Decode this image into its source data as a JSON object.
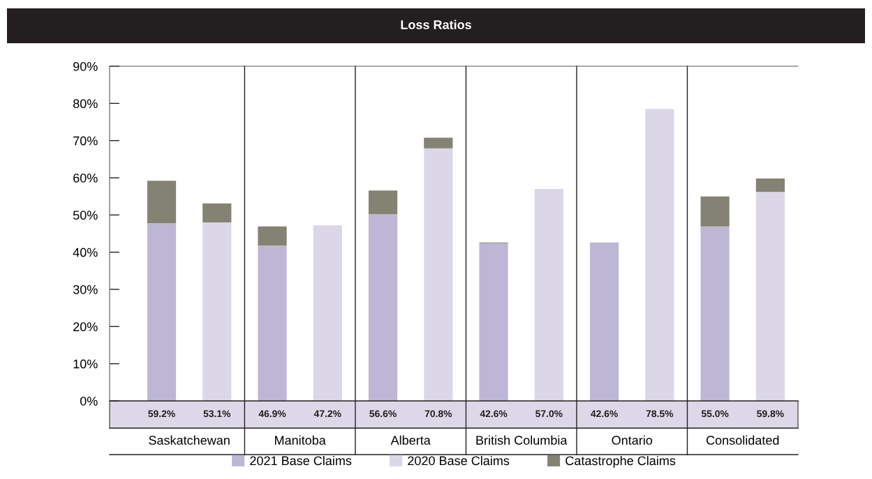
{
  "chart_data": {
    "type": "bar",
    "title": "Loss Ratios",
    "stacked": true,
    "categories": [
      "Saskatchewan",
      null,
      "Manitoba",
      null,
      "Alberta",
      null,
      "British Columbia",
      null,
      "Ontario",
      null,
      "Consolidated",
      null
    ],
    "series": [
      {
        "name": "2021 Base Claims",
        "color": "#bdb7d5",
        "values": [
          47.8,
          null,
          41.8,
          null,
          50.2,
          null,
          42.4,
          null,
          42.6,
          null,
          46.9,
          null
        ]
      },
      {
        "name": "2020 Base Claims",
        "color": "#dbd7e8",
        "values": [
          null,
          48.0,
          null,
          47.2,
          null,
          67.9,
          null,
          57.0,
          null,
          78.5,
          null,
          56.2
        ]
      },
      {
        "name": "Catastrophe Claims",
        "color": "#848273",
        "values": [
          11.4,
          5.1,
          5.1,
          0,
          6.4,
          2.9,
          0.2,
          0,
          0,
          0,
          8.1,
          3.6
        ]
      }
    ],
    "totals": [
      "59.2%",
      "53.1%",
      "46.9%",
      "47.2%",
      "56.6%",
      "70.8%",
      "42.6%",
      "57.0%",
      "42.6%",
      "78.5%",
      "55.0%",
      "59.8%"
    ],
    "ylim": [
      0,
      90
    ],
    "yticks": [
      {
        "value": 0,
        "label": "0%"
      },
      {
        "value": 10,
        "label": "10%"
      },
      {
        "value": 20,
        "label": "20%"
      },
      {
        "value": 30,
        "label": "30%"
      },
      {
        "value": 40,
        "label": "40%"
      },
      {
        "value": 50,
        "label": "50%"
      },
      {
        "value": 60,
        "label": "60%"
      },
      {
        "value": 70,
        "label": "70%"
      },
      {
        "value": 80,
        "label": "80%"
      },
      {
        "value": 90,
        "label": "90%"
      }
    ],
    "grid": "x",
    "legend": "bottom"
  }
}
